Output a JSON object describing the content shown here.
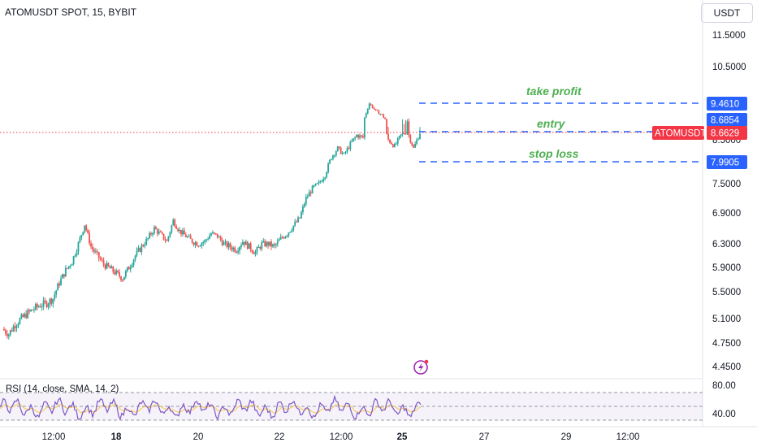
{
  "header": {
    "symbol": "ATOMUSDT SPOT, 15, BYBIT",
    "currency": "USDT"
  },
  "chart_data": [
    {
      "type": "line",
      "y_axis_ticks": [
        "11.5000",
        "10.5000",
        "8.5000",
        "7.5000",
        "6.9000",
        "6.3000",
        "5.9000",
        "5.5000",
        "5.1000",
        "4.7500",
        "4.4500"
      ],
      "x_axis_ticks": [
        "12:00",
        "18",
        "20",
        "22",
        "12:00",
        "25",
        "27",
        "29",
        "12:00"
      ],
      "ylim": [
        4.3,
        11.9
      ],
      "colors": {
        "up": "#26a69a",
        "down": "#ef5350",
        "level_line": "#2962ff",
        "annotation": "#4caf50",
        "last_price": "#f23645"
      },
      "last_price": {
        "label": "ATOMUSDT",
        "value": "8.6629"
      },
      "levels": [
        {
          "label": "take profit",
          "value": "9.4610"
        },
        {
          "label": "entry",
          "value": "8.6854"
        },
        {
          "label": "stop loss",
          "value": "7.9905"
        }
      ],
      "series": [
        {
          "values": [
            4.95,
            4.88,
            5.02,
            5.1,
            5.18,
            5.25,
            5.3,
            5.33,
            5.4,
            5.65,
            5.85,
            6.0,
            6.3,
            6.68,
            6.25,
            6.1,
            5.95,
            5.88,
            5.8,
            5.72,
            5.9,
            6.1,
            6.25,
            6.4,
            6.6,
            6.48,
            6.35,
            6.75,
            6.55,
            6.45,
            6.35,
            6.3,
            6.35,
            6.5,
            6.45,
            6.3,
            6.25,
            6.2,
            6.35,
            6.25,
            6.15,
            6.3,
            6.3,
            6.25,
            6.4,
            6.5,
            6.65,
            6.8,
            7.2,
            7.4,
            7.5,
            7.7,
            8.1,
            8.3,
            8.15,
            8.4,
            8.6,
            8.55,
            9.45,
            9.1,
            8.9,
            8.5,
            8.35,
            8.6,
            8.7,
            8.3,
            8.66
          ]
        }
      ]
    },
    {
      "type": "line",
      "title": "RSI (14, close, SMA, 14, 2)",
      "y_axis_ticks": [
        "80.00",
        "40.00"
      ],
      "ylim": [
        30,
        90
      ],
      "colors": {
        "rsi": "#7e57c2",
        "sma": "#f7c948",
        "band": "#7e57c2"
      }
    }
  ],
  "icons": {
    "lightning": "lightning-icon"
  }
}
